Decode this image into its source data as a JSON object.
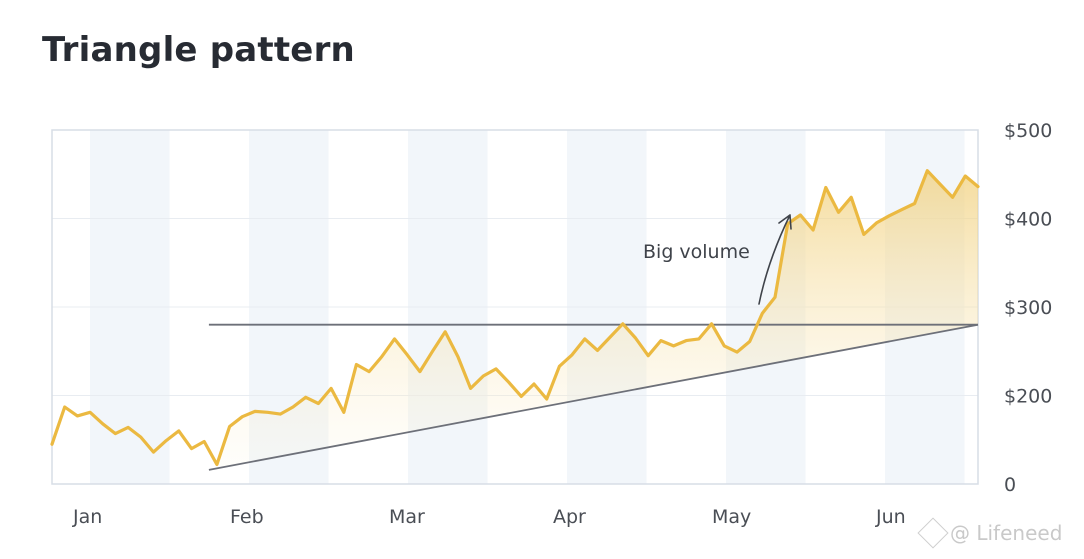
{
  "title": "Triangle pattern",
  "watermark": "@ Lifeneed",
  "chart_data": {
    "type": "line",
    "title": "Triangle pattern",
    "x_tick_labels": [
      "Jan",
      "Feb",
      "Mar",
      "Apr",
      "May",
      "Jun"
    ],
    "y_tick_labels": [
      "0",
      "$200",
      "$300",
      "$400",
      "$500"
    ],
    "ylim": [
      100,
      500
    ],
    "grid": true,
    "series": [
      {
        "color": "#ebb941",
        "values": [
          145,
          187,
          177,
          181,
          168,
          157,
          164,
          153,
          136,
          149,
          160,
          140,
          148,
          122,
          165,
          176,
          182,
          181,
          179,
          187,
          198,
          191,
          208,
          181,
          235,
          227,
          244,
          264,
          246,
          227,
          250,
          272,
          244,
          208,
          222,
          230,
          215,
          199,
          213,
          196,
          233,
          246,
          264,
          251,
          266,
          281,
          265,
          245,
          262,
          256,
          262,
          264,
          281,
          256,
          249,
          261,
          293,
          311,
          394,
          404,
          387,
          435,
          407,
          424,
          382,
          395,
          403,
          410,
          417,
          454,
          439,
          424,
          448,
          436
        ]
      }
    ],
    "resistance_line": {
      "value": 280
    },
    "support_line": {
      "from_value": 116,
      "to_value": 280
    },
    "annotation": "Big volume",
    "shaded_bands_color": "#f2f6fa"
  }
}
